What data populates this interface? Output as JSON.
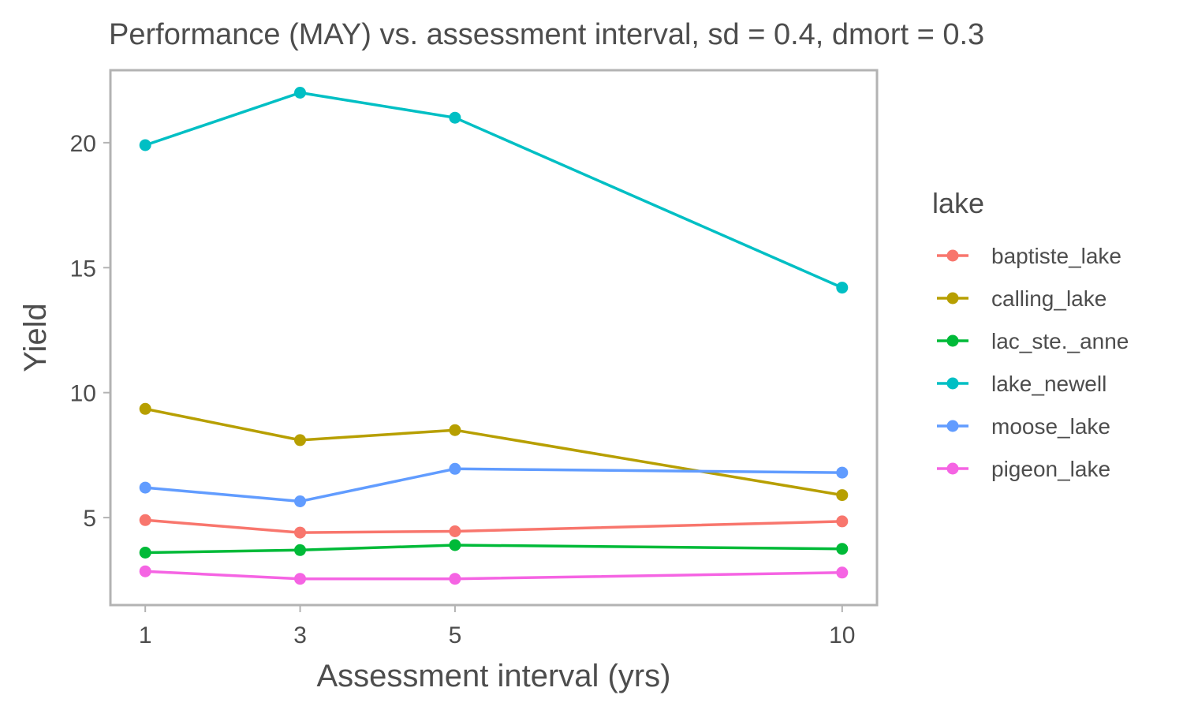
{
  "chart_data": {
    "type": "line",
    "title": "Performance (MAY) vs. assessment interval, sd = 0.4, dmort = 0.3",
    "xlabel": "Assessment interval (yrs)",
    "ylabel": "Yield",
    "x": [
      1,
      3,
      5,
      10
    ],
    "x_ticks": [
      "1",
      "3",
      "5",
      "10"
    ],
    "y_ticks": [
      "5",
      "10",
      "15",
      "20"
    ],
    "xlim": [
      0.55,
      10.45
    ],
    "ylim": [
      1.5,
      22.9
    ],
    "grid": false,
    "panel_border_color": "#b3b3b3",
    "legend": {
      "title": "lake",
      "position": "right"
    },
    "series": [
      {
        "name": "baptiste_lake",
        "color": "#F8766D",
        "values": [
          4.9,
          4.4,
          4.45,
          4.85
        ]
      },
      {
        "name": "calling_lake",
        "color": "#B79F00",
        "values": [
          9.35,
          8.1,
          8.5,
          5.9
        ]
      },
      {
        "name": "lac_ste._anne",
        "color": "#00BA38",
        "values": [
          3.6,
          3.7,
          3.9,
          3.75
        ]
      },
      {
        "name": "lake_newell",
        "color": "#00BFC4",
        "values": [
          19.9,
          22.0,
          21.0,
          14.2
        ]
      },
      {
        "name": "moose_lake",
        "color": "#619CFF",
        "values": [
          6.2,
          5.65,
          6.95,
          6.8
        ]
      },
      {
        "name": "pigeon_lake",
        "color": "#F564E3",
        "values": [
          2.85,
          2.55,
          2.55,
          2.8
        ]
      }
    ]
  }
}
